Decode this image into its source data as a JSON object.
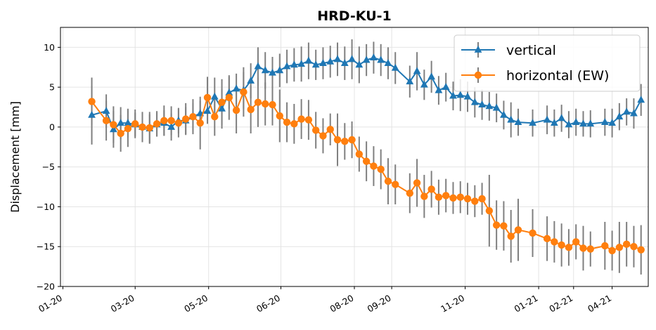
{
  "chart_data": {
    "type": "line",
    "title": "HRD-KU-1",
    "xlabel": "",
    "ylabel": "Displacement [mm]",
    "ylim": [
      -20,
      12.5
    ],
    "yticks": [
      -20,
      -15,
      -10,
      -5,
      0,
      5,
      10
    ],
    "xlim": [
      "2019-12-30",
      "2021-05-01"
    ],
    "xticks": [
      {
        "date": "2020-01-01",
        "label": "01-20"
      },
      {
        "date": "2020-03-01",
        "label": "03-20"
      },
      {
        "date": "2020-05-01",
        "label": "05-20"
      },
      {
        "date": "2020-06-30",
        "label": "06-20"
      },
      {
        "date": "2020-08-30",
        "label": "08-20"
      },
      {
        "date": "2020-09-30",
        "label": "09-20"
      },
      {
        "date": "2020-11-30",
        "label": "11-20"
      },
      {
        "date": "2021-01-30",
        "label": "01-21"
      },
      {
        "date": "2021-02-28",
        "label": "02-21"
      },
      {
        "date": "2021-04-01",
        "label": "04-21"
      }
    ],
    "grid": true,
    "legend_position": "top-right",
    "error_bar_color": "#7f7f7f",
    "x": [
      "2020-01-25",
      "2020-02-06",
      "2020-02-12",
      "2020-02-18",
      "2020-02-24",
      "2020-03-01",
      "2020-03-07",
      "2020-03-13",
      "2020-03-19",
      "2020-03-25",
      "2020-03-31",
      "2020-04-06",
      "2020-04-12",
      "2020-04-18",
      "2020-04-24",
      "2020-04-30",
      "2020-05-06",
      "2020-05-12",
      "2020-05-18",
      "2020-05-24",
      "2020-05-30",
      "2020-06-05",
      "2020-06-11",
      "2020-06-17",
      "2020-06-23",
      "2020-06-29",
      "2020-07-05",
      "2020-07-11",
      "2020-07-17",
      "2020-07-23",
      "2020-07-29",
      "2020-08-04",
      "2020-08-10",
      "2020-08-16",
      "2020-08-22",
      "2020-08-28",
      "2020-09-03",
      "2020-09-09",
      "2020-09-15",
      "2020-09-21",
      "2020-09-27",
      "2020-10-03",
      "2020-10-15",
      "2020-10-21",
      "2020-10-27",
      "2020-11-02",
      "2020-11-08",
      "2020-11-14",
      "2020-11-20",
      "2020-11-26",
      "2020-12-02",
      "2020-12-08",
      "2020-12-14",
      "2020-12-20",
      "2020-12-26",
      "2021-01-01",
      "2021-01-07",
      "2021-01-13",
      "2021-01-25",
      "2021-02-06",
      "2021-02-12",
      "2021-02-18",
      "2021-02-24",
      "2021-03-02",
      "2021-03-08",
      "2021-03-14",
      "2021-03-26",
      "2021-04-01",
      "2021-04-07",
      "2021-04-13",
      "2021-04-19",
      "2021-04-25"
    ],
    "series": [
      {
        "name": "vertical",
        "color": "#1f77b4",
        "marker": "triangle",
        "values": [
          1.5,
          2.0,
          -0.3,
          0.5,
          0.5,
          0.3,
          0.0,
          -0.2,
          0.3,
          0.5,
          0.0,
          0.8,
          0.8,
          1.3,
          1.7,
          2.0,
          3.8,
          2.3,
          4.3,
          4.8,
          4.6,
          5.8,
          7.6,
          7.1,
          6.8,
          7.1,
          7.6,
          7.8,
          7.9,
          8.3,
          7.8,
          8.0,
          8.2,
          8.5,
          8.0,
          8.5,
          7.8,
          8.4,
          8.7,
          8.4,
          8.0,
          7.4,
          5.7,
          7.0,
          5.3,
          6.3,
          4.6,
          5.0,
          3.9,
          4.0,
          3.8,
          3.1,
          2.8,
          2.6,
          2.4,
          1.5,
          0.9,
          0.6,
          0.5,
          0.9,
          0.5,
          1.1,
          0.3,
          0.6,
          0.4,
          0.4,
          0.6,
          0.5,
          1.3,
          1.9,
          1.7,
          3.4
        ],
        "errors": [
          3.7,
          2.1,
          2.3,
          2.0,
          1.8,
          1.5,
          1.6,
          1.8,
          1.5,
          1.6,
          1.7,
          1.6,
          1.7,
          1.7,
          1.6,
          1.6,
          2.4,
          2.5,
          2.0,
          1.9,
          2.3,
          2.2,
          2.4,
          2.3,
          2.0,
          2.1,
          2.1,
          2.1,
          2.2,
          2.3,
          1.9,
          2.0,
          2.0,
          2.1,
          2.1,
          2.5,
          2.3,
          2.0,
          2.0,
          2.0,
          2.0,
          2.0,
          2.0,
          2.4,
          1.9,
          2.0,
          1.8,
          1.8,
          1.8,
          2.0,
          1.9,
          1.9,
          1.9,
          1.8,
          1.8,
          1.8,
          2.2,
          1.7,
          1.7,
          1.8,
          1.7,
          1.7,
          1.7,
          1.7,
          1.6,
          1.7,
          1.7,
          1.8,
          1.7,
          1.7,
          1.9,
          2.0
        ]
      },
      {
        "name": "horizontal (EW)",
        "color": "#ff7f0e",
        "marker": "circle",
        "values": [
          3.2,
          0.8,
          0.3,
          -0.8,
          -0.2,
          0.4,
          0.0,
          -0.1,
          0.4,
          0.8,
          0.8,
          0.5,
          1.0,
          1.3,
          0.5,
          3.7,
          1.3,
          3.1,
          3.7,
          2.1,
          4.4,
          2.2,
          3.1,
          2.9,
          2.8,
          1.4,
          0.6,
          0.4,
          1.0,
          0.9,
          -0.4,
          -1.1,
          -0.3,
          -1.6,
          -1.8,
          -1.6,
          -3.4,
          -4.3,
          -4.9,
          -5.3,
          -6.8,
          -7.2,
          -8.3,
          -7.0,
          -8.7,
          -7.8,
          -8.8,
          -8.6,
          -8.9,
          -8.8,
          -9.0,
          -9.3,
          -9.0,
          -10.5,
          -12.3,
          -12.4,
          -13.7,
          -12.9,
          -13.3,
          -14.0,
          -14.4,
          -14.8,
          -15.1,
          -14.4,
          -15.2,
          -15.3,
          -14.9,
          -15.5,
          -15.1,
          -14.7,
          -15.0,
          -15.4
        ],
        "errors": [
          3.0,
          2.5,
          2.3,
          2.3,
          2.3,
          1.8,
          1.9,
          2.0,
          1.6,
          1.9,
          1.8,
          1.8,
          2.0,
          2.2,
          3.3,
          2.6,
          2.4,
          2.9,
          2.8,
          2.9,
          3.1,
          3.0,
          3.1,
          2.7,
          2.6,
          3.3,
          2.5,
          2.5,
          2.5,
          2.5,
          2.3,
          2.2,
          2.0,
          3.3,
          2.3,
          2.3,
          2.2,
          2.5,
          2.5,
          2.5,
          2.9,
          2.5,
          2.5,
          3.0,
          2.7,
          2.3,
          2.2,
          2.1,
          2.0,
          2.0,
          2.0,
          2.0,
          2.0,
          4.5,
          3.1,
          3.1,
          3.3,
          3.9,
          3.0,
          2.8,
          2.6,
          2.7,
          2.3,
          2.2,
          2.8,
          2.2,
          3.0,
          2.5,
          3.2,
          2.8,
          2.6,
          3.1
        ]
      }
    ]
  }
}
